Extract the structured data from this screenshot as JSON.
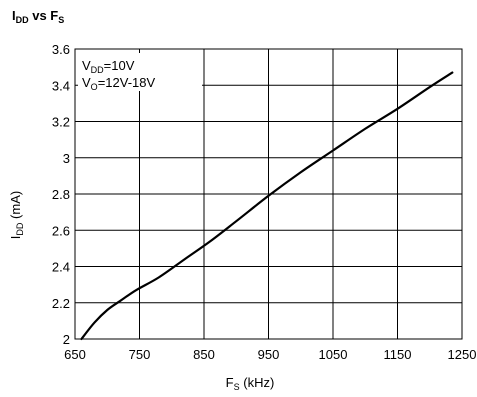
{
  "chart_data": {
    "type": "line",
    "title": {
      "main": "I",
      "sub": "DD",
      "mid": " vs F",
      "sub2": "S"
    },
    "xlabel": {
      "main": "F",
      "sub": "S",
      "rest": " (kHz)"
    },
    "ylabel": {
      "main": "I",
      "sub": "DD",
      "rest": " (mA)"
    },
    "xlim": [
      650,
      1250
    ],
    "ylim": [
      2.0,
      3.6
    ],
    "x_ticks": [
      650,
      750,
      850,
      950,
      1050,
      1150,
      1250
    ],
    "y_ticks": [
      2,
      2.2,
      2.4,
      2.6,
      2.8,
      3,
      3.2,
      3.4,
      3.6
    ],
    "x_tick_labels": [
      "650",
      "750",
      "850",
      "950",
      "1050",
      "1150",
      "1250"
    ],
    "y_tick_labels": [
      "2",
      "2.2",
      "2.4",
      "2.6",
      "2.8",
      "3",
      "3.2",
      "3.4",
      "3.6"
    ],
    "grid": true,
    "annotations": [
      {
        "main": "V",
        "sub": "DD",
        "rest": "=10V"
      },
      {
        "main": "V",
        "sub": "O",
        "rest": "=12V-18V"
      }
    ],
    "series": [
      {
        "x": [
          660,
          680,
          700,
          720,
          745,
          780,
          820,
          860,
          900,
          950,
          1000,
          1050,
          1100,
          1150,
          1200,
          1235
        ],
        "y": [
          2.0,
          2.09,
          2.16,
          2.21,
          2.27,
          2.34,
          2.44,
          2.54,
          2.65,
          2.79,
          2.92,
          3.04,
          3.16,
          3.27,
          3.39,
          3.47
        ]
      }
    ]
  }
}
